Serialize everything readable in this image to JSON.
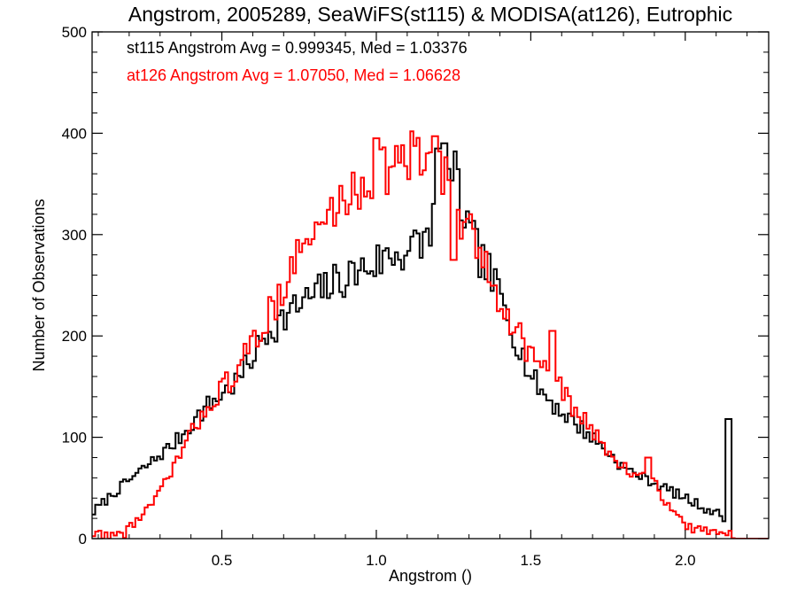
{
  "chart_data": {
    "type": "histogram",
    "title": "Angstrom, 2005289, SeaWiFS(st115) & MODISA(at126), Eutrophic",
    "xlabel": "Angstrom ()",
    "ylabel": "Number of Observations",
    "xlim": [
      0.08,
      2.27
    ],
    "ylim": [
      0,
      500
    ],
    "xticks": [
      0.5,
      1.0,
      1.5,
      2.0
    ],
    "xtick_labels": [
      "0.5",
      "1.0",
      "1.5",
      "2.0"
    ],
    "yticks": [
      0,
      100,
      200,
      300,
      400,
      500
    ],
    "ytick_labels": [
      "0",
      "100",
      "200",
      "300",
      "400",
      "500"
    ],
    "bin_width": 0.01,
    "series": [
      {
        "name": "st115",
        "color": "#000000",
        "stats": "st115 Angstrom Avg = 0.999345, Med = 1.03376",
        "profile": [
          [
            0.08,
            25
          ],
          [
            0.15,
            45
          ],
          [
            0.25,
            70
          ],
          [
            0.35,
            95
          ],
          [
            0.45,
            130
          ],
          [
            0.55,
            155
          ],
          [
            0.65,
            205
          ],
          [
            0.75,
            230
          ],
          [
            0.85,
            250
          ],
          [
            0.95,
            265
          ],
          [
            1.05,
            280
          ],
          [
            1.15,
            290
          ],
          [
            1.2,
            330
          ],
          [
            1.25,
            360
          ],
          [
            1.3,
            300
          ],
          [
            1.35,
            270
          ],
          [
            1.4,
            240
          ],
          [
            1.45,
            200
          ],
          [
            1.5,
            160
          ],
          [
            1.55,
            140
          ],
          [
            1.6,
            125
          ],
          [
            1.7,
            100
          ],
          [
            1.8,
            70
          ],
          [
            1.9,
            55
          ],
          [
            2.0,
            40
          ],
          [
            2.1,
            25
          ],
          [
            2.15,
            18
          ],
          [
            2.151,
            0
          ],
          [
            2.27,
            0
          ]
        ],
        "spikes": [
          [
            2.14,
            118
          ],
          [
            1.22,
            390
          ],
          [
            1.2,
            385
          ]
        ]
      },
      {
        "name": "at126",
        "color": "#ff0000",
        "stats": "at126 Angstrom Avg = 1.07050, Med = 1.06628",
        "profile": [
          [
            0.08,
            5
          ],
          [
            0.18,
            3
          ],
          [
            0.2,
            12
          ],
          [
            0.25,
            25
          ],
          [
            0.3,
            45
          ],
          [
            0.35,
            75
          ],
          [
            0.45,
            130
          ],
          [
            0.55,
            165
          ],
          [
            0.65,
            220
          ],
          [
            0.75,
            280
          ],
          [
            0.85,
            320
          ],
          [
            0.95,
            350
          ],
          [
            1.05,
            370
          ],
          [
            1.15,
            375
          ],
          [
            1.2,
            390
          ],
          [
            1.25,
            320
          ],
          [
            1.3,
            300
          ],
          [
            1.35,
            270
          ],
          [
            1.4,
            240
          ],
          [
            1.45,
            210
          ],
          [
            1.5,
            180
          ],
          [
            1.55,
            170
          ],
          [
            1.6,
            145
          ],
          [
            1.7,
            105
          ],
          [
            1.8,
            70
          ],
          [
            1.9,
            55
          ],
          [
            1.95,
            30
          ],
          [
            2.0,
            12
          ],
          [
            2.1,
            6
          ],
          [
            2.15,
            4
          ],
          [
            2.16,
            0
          ],
          [
            2.27,
            0
          ]
        ],
        "spikes": [
          [
            1.19,
            397
          ],
          [
            1.0,
            395
          ],
          [
            1.57,
            205
          ],
          [
            1.88,
            80
          ],
          [
            1.25,
            275
          ]
        ]
      }
    ]
  }
}
